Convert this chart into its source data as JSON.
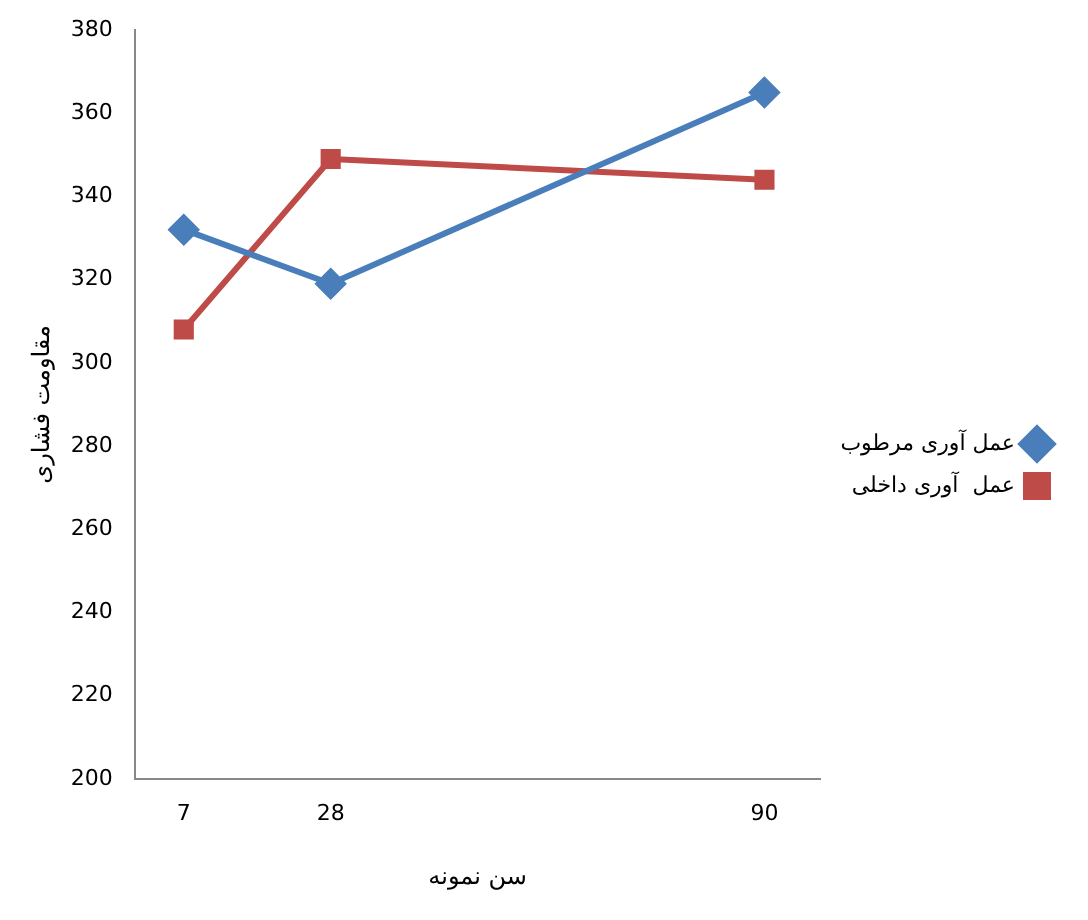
{
  "chart_data": {
    "type": "line",
    "xlabel": "سن نمونه",
    "ylabel": "مقاومت فشاری",
    "x": [
      7,
      28,
      90
    ],
    "xlim": [
      0,
      98
    ],
    "xticks": [
      7,
      28,
      90
    ],
    "ylim": [
      200,
      380
    ],
    "yticks": [
      200,
      220,
      240,
      260,
      280,
      300,
      320,
      340,
      360,
      380
    ],
    "grid": false,
    "legend": "right",
    "line_style": "solid",
    "series": [
      {
        "name": "عمل آوری مرطوب",
        "color": "#4a7ebb",
        "marker": "diamond",
        "values": [
          332,
          319,
          365
        ]
      },
      {
        "name": "عمل  آوری داخلی",
        "color": "#be4b48",
        "marker": "square",
        "values": [
          308,
          349,
          344
        ]
      }
    ]
  }
}
